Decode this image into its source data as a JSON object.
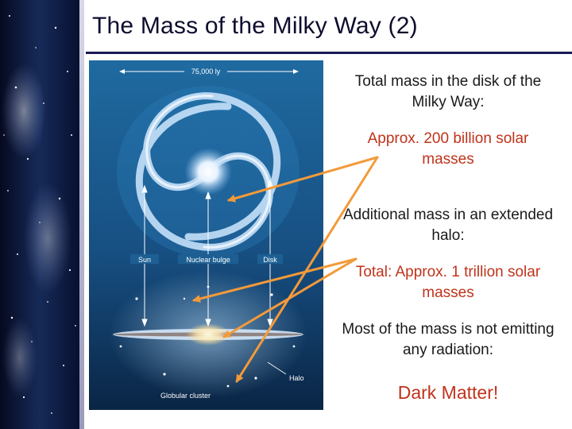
{
  "slide": {
    "title": "The Mass of the Milky Way (2)"
  },
  "figure": {
    "scale_label": "75,000 ly",
    "labels": {
      "sun": "Sun",
      "nuclear_bulge": "Nuclear bulge",
      "disk": "Disk",
      "halo": "Halo",
      "globular_cluster": "Globular cluster"
    }
  },
  "text": {
    "disk_heading": "Total mass in the disk of the Milky Way:",
    "disk_value": "Approx. 200 billion solar masses",
    "halo_heading": "Additional mass in an extended halo:",
    "halo_value": "Total: Approx. 1 trillion solar masses",
    "dark_heading": "Most of the mass is not emitting any radiation:",
    "dark_matter": "Dark Matter!"
  },
  "colors": {
    "title": "#0d0d2e",
    "highlight": "#c0331b",
    "arrow": "#f39a3a",
    "rule": "#1a1a55"
  }
}
